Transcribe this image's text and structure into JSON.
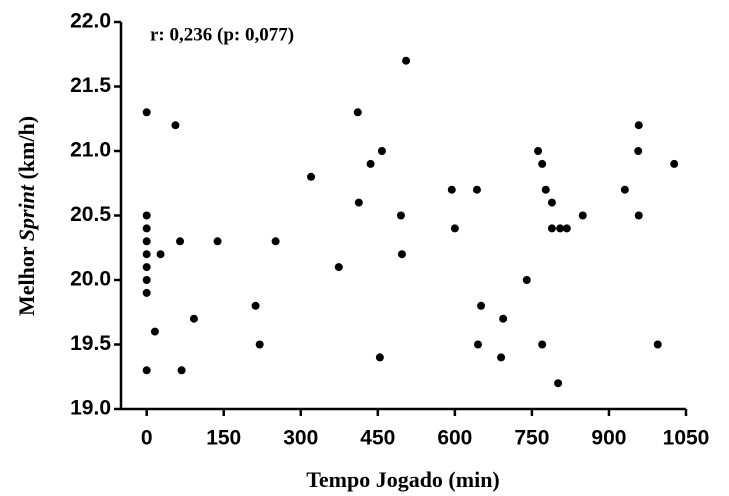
{
  "chart_data": {
    "type": "scatter",
    "annotation": "r: 0,236 (p: 0,077)",
    "x_label": "Tempo Jogado (min)",
    "y_label": [
      "Melhor ",
      "Sprint",
      " (km/h)"
    ],
    "color": "#000000",
    "xlim": [
      -50,
      1050
    ],
    "xticks": [
      0,
      150,
      300,
      450,
      600,
      750,
      900,
      1050
    ],
    "ylim": [
      19,
      22
    ],
    "yticks": [
      {
        "value": 19,
        "label": "19.0"
      },
      19.5,
      {
        "value": 20,
        "label": "20.0"
      },
      20.5,
      {
        "value": 21,
        "label": "21.0"
      },
      21.5,
      {
        "value": 22,
        "label": "22.0"
      }
    ],
    "x": [
      0,
      0,
      0,
      0,
      0,
      0,
      0,
      0,
      0,
      56,
      65,
      27,
      16,
      92,
      68,
      138,
      212,
      220,
      251,
      320,
      374,
      411,
      413,
      436,
      458,
      454,
      505,
      495,
      497,
      594,
      600,
      643,
      651,
      645,
      694,
      690,
      740,
      762,
      770,
      777,
      789,
      789,
      805,
      818,
      770,
      801,
      849,
      931,
      958,
      957,
      958,
      995,
      1027
    ],
    "y": [
      21.3,
      20.5,
      20.4,
      20.3,
      20.2,
      20.1,
      20.0,
      19.9,
      19.3,
      21.2,
      20.3,
      20.2,
      19.6,
      19.7,
      19.3,
      20.3,
      19.8,
      19.5,
      20.3,
      20.8,
      20.1,
      21.3,
      20.6,
      20.9,
      21.0,
      19.4,
      21.7,
      20.5,
      20.2,
      20.7,
      20.4,
      20.7,
      19.8,
      19.5,
      19.7,
      19.4,
      20.0,
      21.0,
      20.9,
      20.7,
      20.6,
      20.4,
      20.4,
      20.4,
      19.5,
      19.2,
      20.5,
      20.7,
      21.2,
      21.0,
      20.5,
      19.5,
      20.9
    ]
  }
}
